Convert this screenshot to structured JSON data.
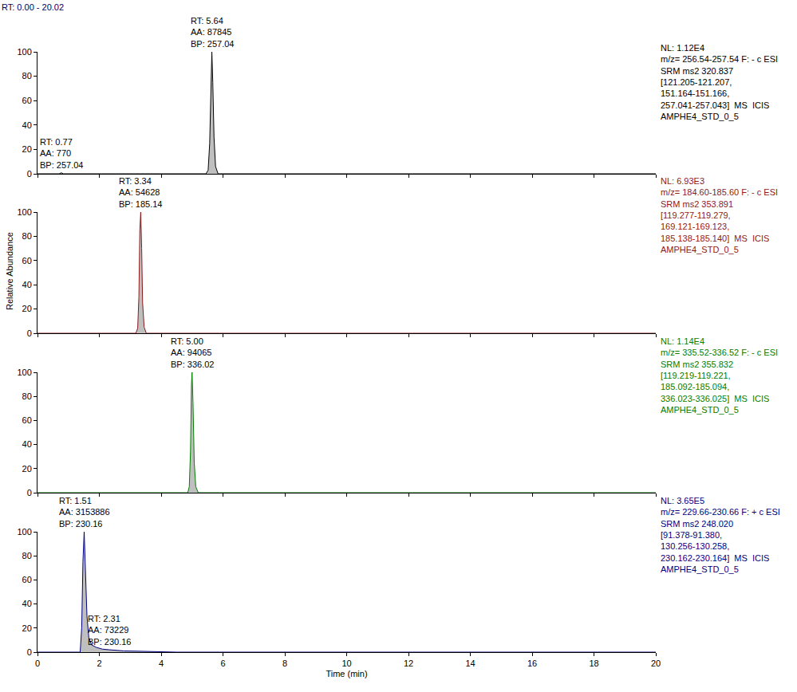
{
  "title": "RT: 0.00 - 20.02",
  "ylabel": "Relative Abundance",
  "chart_data": [
    {
      "type": "line",
      "color": "#000000",
      "x": [
        0,
        0.7,
        0.77,
        0.84,
        5.45,
        5.52,
        5.57,
        5.61,
        5.64,
        5.67,
        5.71,
        5.76,
        5.84,
        20
      ],
      "values": [
        0,
        0,
        0.8,
        0,
        0,
        3,
        25,
        80,
        100,
        75,
        30,
        6,
        0,
        0
      ],
      "xlim": [
        0,
        20
      ],
      "xticks": [
        0,
        2,
        4,
        6,
        8,
        10,
        12,
        14,
        16,
        18,
        20
      ],
      "ylim": [
        0,
        100
      ],
      "yticks": [
        0,
        20,
        40,
        60,
        80,
        100
      ],
      "grid": false,
      "tick_labels": "y",
      "annotations": [
        {
          "x": 5.64,
          "y": 100,
          "text": [
            "RT: 5.64",
            "AA: 87845",
            "BP: 257.04"
          ]
        },
        {
          "x": 0.77,
          "y": 0.8,
          "text": [
            "RT: 0.77",
            "AA: 770",
            "BP: 257.04"
          ]
        }
      ],
      "subtitle": [
        "NL: 1.12E4",
        "m/z= 256.54-257.54 F: - c ESI",
        "SRM ms2 320.837",
        "[121.205-121.207,",
        "151.164-151.166,",
        "257.041-257.043]  MS  ICIS",
        "AMPHE4_STD_0_5"
      ]
    },
    {
      "type": "line",
      "color": "#8b1a1a",
      "x": [
        0,
        3.18,
        3.24,
        3.28,
        3.31,
        3.34,
        3.37,
        3.4,
        3.45,
        3.52,
        20
      ],
      "values": [
        0,
        0,
        4,
        30,
        85,
        100,
        70,
        25,
        5,
        0,
        0
      ],
      "xlim": [
        0,
        20
      ],
      "xticks": [
        0,
        2,
        4,
        6,
        8,
        10,
        12,
        14,
        16,
        18,
        20
      ],
      "ylim": [
        0,
        100
      ],
      "yticks": [
        0,
        20,
        40,
        60,
        80,
        100
      ],
      "grid": false,
      "tick_labels": "y",
      "annotations": [
        {
          "x": 3.34,
          "y": 100,
          "text": [
            "RT: 3.34",
            "AA: 54628",
            "BP: 185.14"
          ]
        }
      ],
      "subtitle": [
        "NL: 6.93E3",
        "m/z= 184.60-185.60 F: - c ESI",
        "SRM ms2 353.891",
        "[119.277-119.279,",
        "169.121-169.123,",
        "185.138-185.140]  MS  ICIS",
        "AMPHE4_STD_0_5"
      ]
    },
    {
      "type": "line",
      "color": "#008000",
      "x": [
        0,
        4.86,
        4.91,
        4.95,
        4.98,
        5.0,
        5.03,
        5.07,
        5.12,
        5.2,
        20
      ],
      "values": [
        0,
        0,
        5,
        35,
        90,
        100,
        75,
        25,
        5,
        0,
        0
      ],
      "xlim": [
        0,
        20
      ],
      "xticks": [
        0,
        2,
        4,
        6,
        8,
        10,
        12,
        14,
        16,
        18,
        20
      ],
      "ylim": [
        0,
        100
      ],
      "yticks": [
        0,
        20,
        40,
        60,
        80,
        100
      ],
      "grid": false,
      "tick_labels": "y",
      "annotations": [
        {
          "x": 5.0,
          "y": 100,
          "text": [
            "RT: 5.00",
            "AA: 94065",
            "BP: 336.02"
          ]
        }
      ],
      "subtitle": [
        "NL: 1.14E4",
        "m/z= 335.52-336.52 F: - c ESI",
        "SRM ms2 355.832",
        "[119.219-119.221,",
        "185.092-185.094,",
        "336.023-336.025]  MS  ICIS",
        "AMPHE4_STD_0_5"
      ]
    },
    {
      "type": "line",
      "color": "#000080",
      "x": [
        0,
        1.38,
        1.43,
        1.47,
        1.51,
        1.55,
        1.6,
        1.66,
        1.75,
        1.9,
        2.1,
        2.31,
        2.5,
        2.8,
        3.2,
        3.8,
        4.5,
        20
      ],
      "values": [
        0,
        0,
        20,
        75,
        100,
        70,
        30,
        12,
        6,
        4,
        2.5,
        2,
        1.5,
        1,
        0.8,
        0.5,
        0,
        0
      ],
      "xlim": [
        0,
        20
      ],
      "xticks": [
        0,
        2,
        4,
        6,
        8,
        10,
        12,
        14,
        16,
        18,
        20
      ],
      "ylim": [
        0,
        100
      ],
      "yticks": [
        0,
        20,
        40,
        60,
        80,
        100
      ],
      "grid": false,
      "xlabel": "Time (min)",
      "annotations": [
        {
          "x": 1.51,
          "y": 100,
          "text": [
            "RT: 1.51",
            "AA: 3153886",
            "BP: 230.16"
          ]
        },
        {
          "x": 2.31,
          "y": 2,
          "text": [
            "RT: 2.31",
            "AA: 73229",
            "BP: 230.16"
          ]
        }
      ],
      "subtitle": [
        "NL: 3.65E5",
        "m/z= 229.66-230.66 F: + c ESI",
        "SRM ms2 248.020",
        "[91.378-91.380,",
        "130.256-130.258,",
        "230.162-230.164]  MS  ICIS",
        "AMPHE4_STD_0_5"
      ]
    }
  ]
}
